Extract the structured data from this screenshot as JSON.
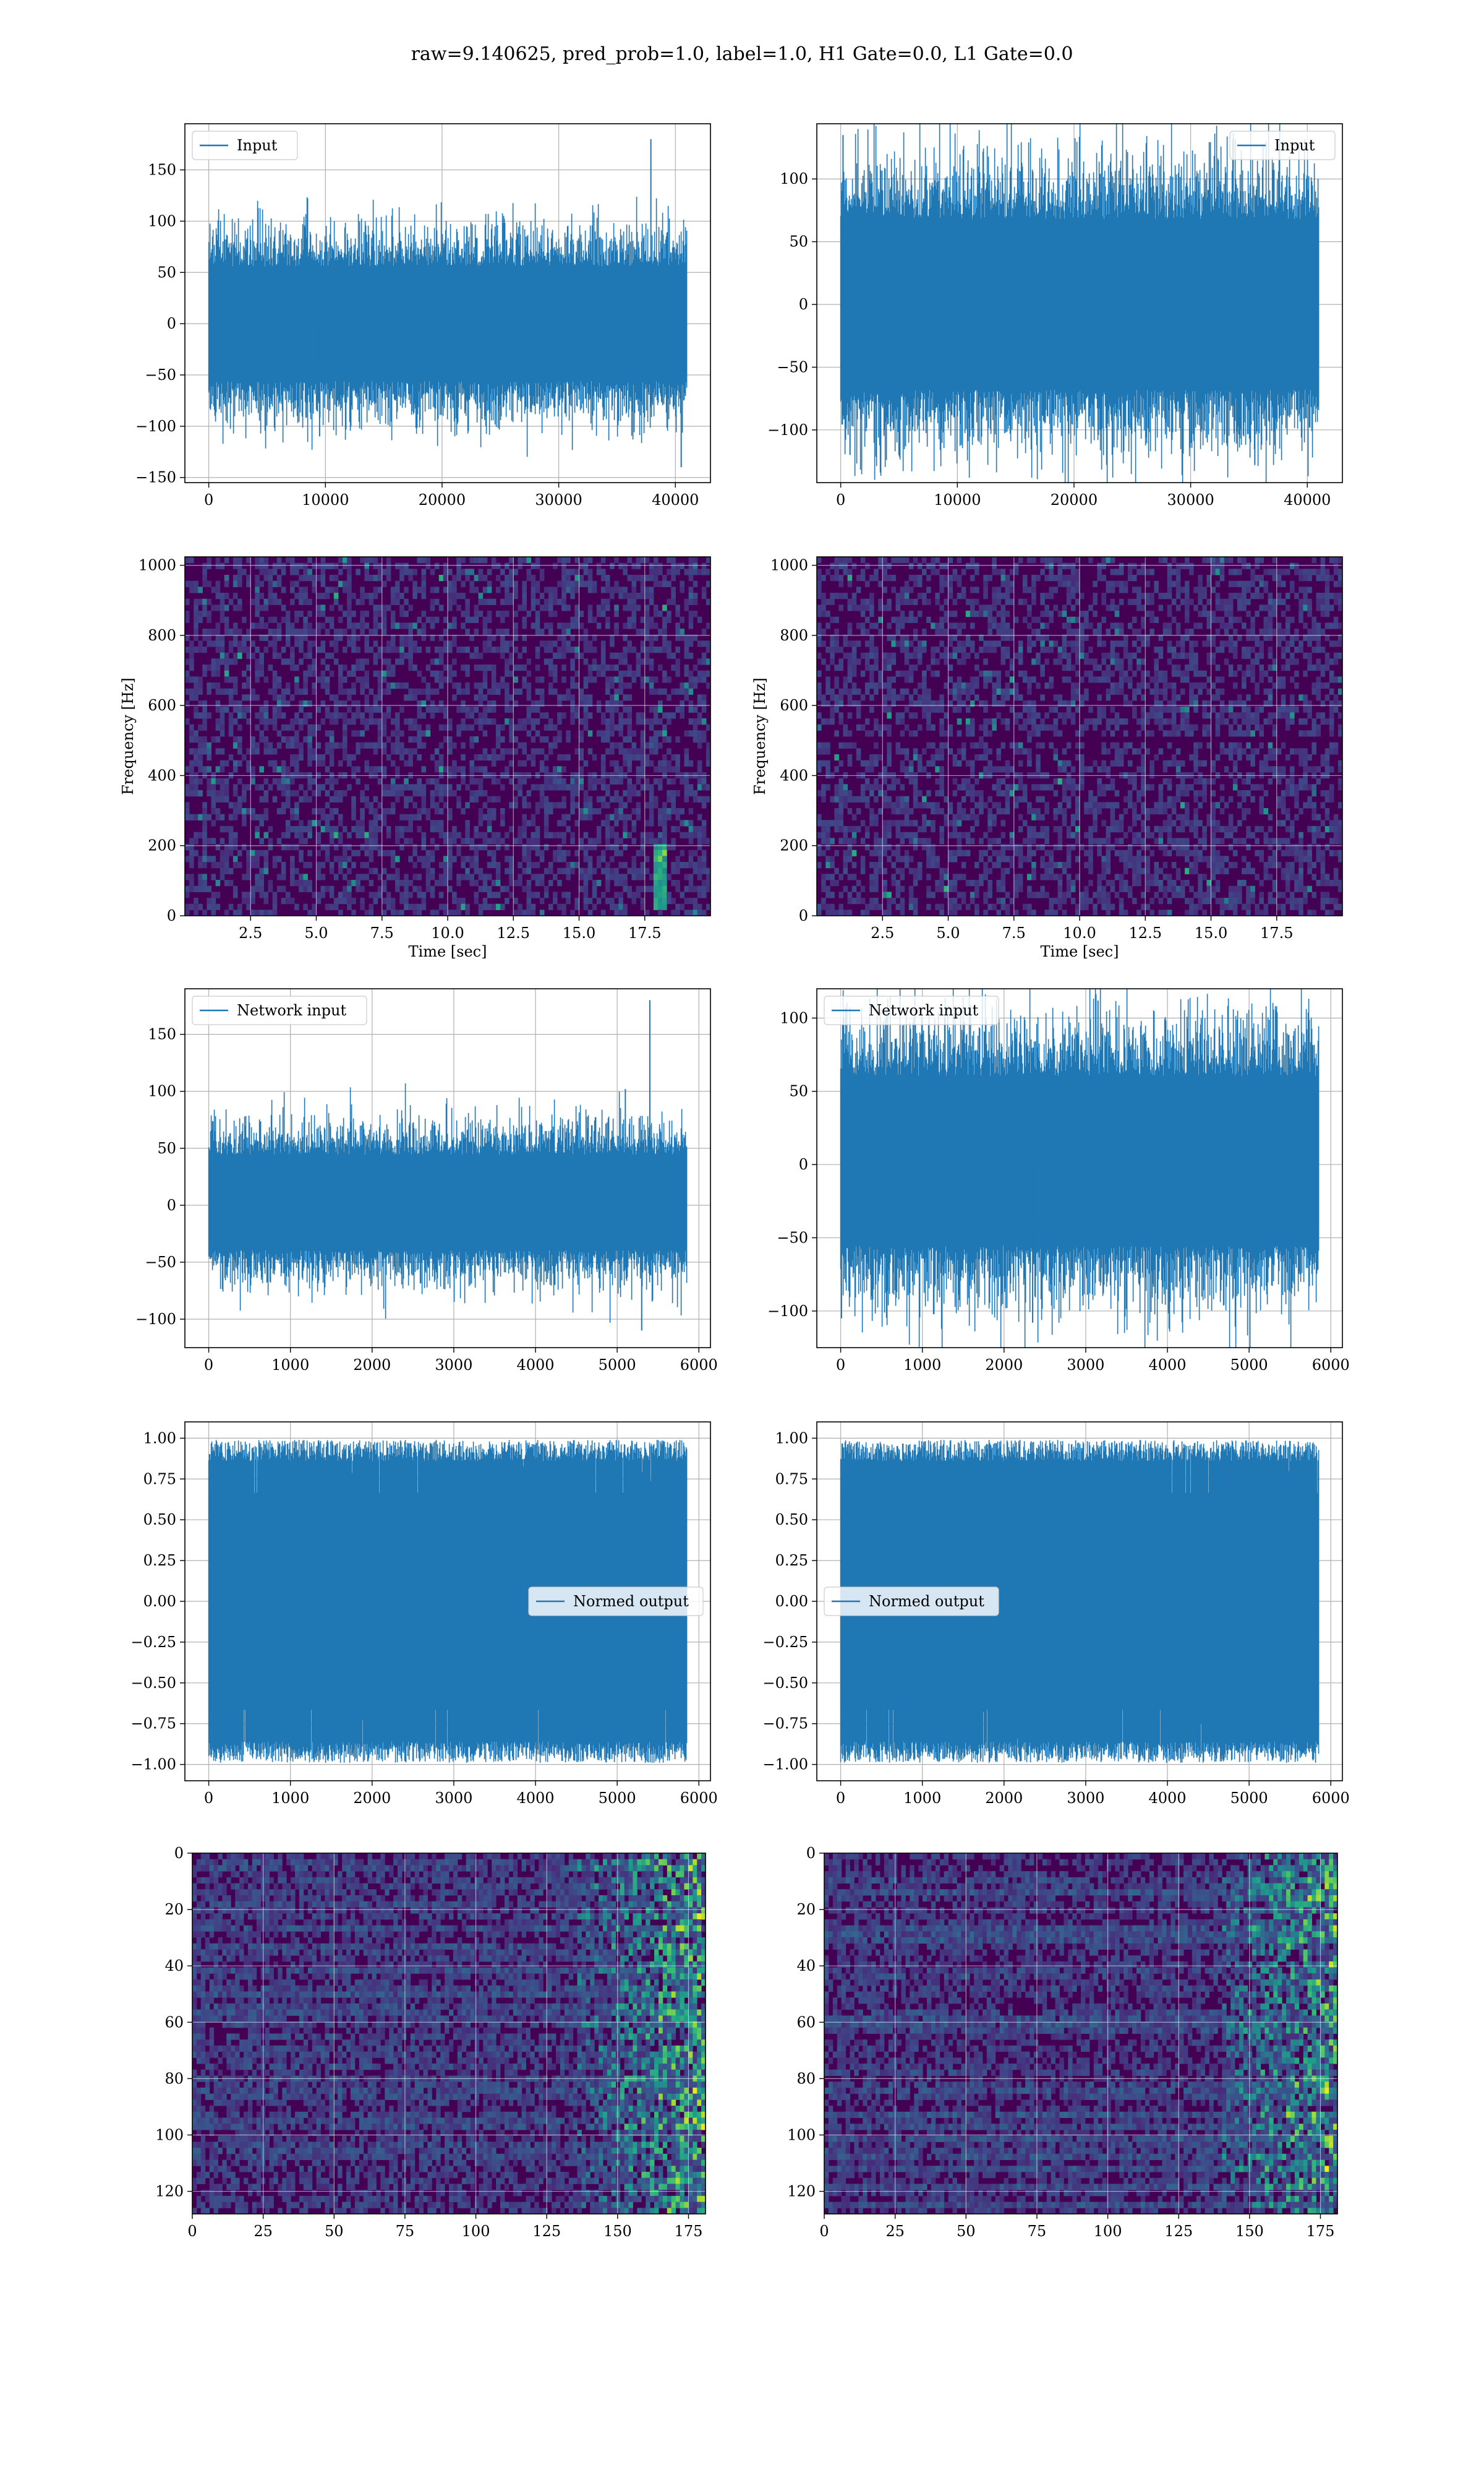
{
  "figure": {
    "suptitle": "raw=9.140625, pred_prob=1.0, label=1.0, H1 Gate=0.0, L1 Gate=0.0"
  },
  "colors": {
    "line": "#1f77b4",
    "grid": "#b0b0b0",
    "viridis_low": "#440154",
    "viridis_mid": "#21918c",
    "viridis_high": "#fde725"
  },
  "chart_data": [
    {
      "id": "row1-left",
      "type": "line",
      "legend": "Input",
      "legend_loc": "upper left",
      "x_range": [
        0,
        40960
      ],
      "n_points": 40960,
      "envelope_typical": [
        -70,
        70
      ],
      "xlim": [
        -2048,
        43008
      ],
      "ylim": [
        -155,
        195
      ],
      "xticks": [
        0,
        10000,
        20000,
        30000,
        40000
      ],
      "xtick_labels": [
        "0",
        "10000",
        "20000",
        "30000",
        "40000"
      ],
      "yticks": [
        -150,
        -100,
        -50,
        0,
        50,
        100,
        150
      ],
      "ytick_labels": [
        "−150",
        "−100",
        "−50",
        "0",
        "50",
        "100",
        "150"
      ],
      "spikes": [
        {
          "x": 37900,
          "y": 180
        },
        {
          "x": 40500,
          "y": -140
        },
        {
          "x": 9500,
          "y": -110
        }
      ],
      "xlabel": "",
      "ylabel": "",
      "grid": true
    },
    {
      "id": "row1-right",
      "type": "line",
      "legend": "Input",
      "legend_loc": "upper right",
      "x_range": [
        0,
        40960
      ],
      "n_points": 40960,
      "envelope_typical": [
        -85,
        85
      ],
      "xlim": [
        -2048,
        43008
      ],
      "ylim": [
        -142,
        144
      ],
      "xticks": [
        0,
        10000,
        20000,
        30000,
        40000
      ],
      "xtick_labels": [
        "0",
        "10000",
        "20000",
        "30000",
        "40000"
      ],
      "yticks": [
        -100,
        -50,
        0,
        50,
        100
      ],
      "ytick_labels": [
        "−100",
        "−50",
        "0",
        "50",
        "100"
      ],
      "spikes": [
        {
          "x": 200,
          "y": 135
        },
        {
          "x": 800,
          "y": -120
        },
        {
          "x": 35500,
          "y": -128
        }
      ],
      "xlabel": "",
      "ylabel": "",
      "grid": true
    },
    {
      "id": "row2-left",
      "type": "heatmap",
      "colormap": "viridis",
      "xlim": [
        0,
        20
      ],
      "ylim": [
        0,
        1024
      ],
      "xticks": [
        2.5,
        5.0,
        7.5,
        10.0,
        12.5,
        15.0,
        17.5
      ],
      "xtick_labels": [
        "2.5",
        "5.0",
        "7.5",
        "10.0",
        "12.5",
        "15.0",
        "17.5"
      ],
      "yticks": [
        0,
        200,
        400,
        600,
        800,
        1000
      ],
      "ytick_labels": [
        "0",
        "200",
        "400",
        "600",
        "800",
        "1000"
      ],
      "xlabel": "Time [sec]",
      "ylabel": "Frequency [Hz]",
      "features": [
        {
          "t": 18.1,
          "f_from": 20,
          "f_to": 200
        }
      ],
      "grid": true
    },
    {
      "id": "row2-right",
      "type": "heatmap",
      "colormap": "viridis",
      "xlim": [
        0,
        20
      ],
      "ylim": [
        0,
        1024
      ],
      "xticks": [
        2.5,
        5.0,
        7.5,
        10.0,
        12.5,
        15.0,
        17.5
      ],
      "xtick_labels": [
        "2.5",
        "5.0",
        "7.5",
        "10.0",
        "12.5",
        "15.0",
        "17.5"
      ],
      "yticks": [
        0,
        200,
        400,
        600,
        800,
        1000
      ],
      "ytick_labels": [
        "0",
        "200",
        "400",
        "600",
        "800",
        "1000"
      ],
      "xlabel": "Time [sec]",
      "ylabel": "Frequency [Hz]",
      "dark_bands_hz": [
        490,
        510
      ],
      "grid": true
    },
    {
      "id": "row3-left",
      "type": "line",
      "legend": "Network input",
      "legend_loc": "upper left",
      "x_range": [
        0,
        5850
      ],
      "n_points": 5850,
      "envelope_typical": [
        -50,
        55
      ],
      "xlim": [
        -292,
        6142
      ],
      "ylim": [
        -125,
        190
      ],
      "xticks": [
        0,
        1000,
        2000,
        3000,
        4000,
        5000,
        6000
      ],
      "xtick_labels": [
        "0",
        "1000",
        "2000",
        "3000",
        "4000",
        "5000",
        "6000"
      ],
      "yticks": [
        -100,
        -50,
        0,
        50,
        100,
        150
      ],
      "ytick_labels": [
        "−100",
        "−50",
        "0",
        "50",
        "100",
        "150"
      ],
      "spikes": [
        {
          "x": 5400,
          "y": 180
        },
        {
          "x": 5300,
          "y": -110
        },
        {
          "x": 5100,
          "y": 102
        }
      ],
      "xlabel": "",
      "ylabel": "",
      "grid": true
    },
    {
      "id": "row3-right",
      "type": "line",
      "legend": "Network input",
      "legend_loc": "upper left",
      "x_range": [
        0,
        5850
      ],
      "n_points": 5850,
      "envelope_typical": [
        -70,
        75
      ],
      "xlim": [
        -292,
        6142
      ],
      "ylim": [
        -125,
        120
      ],
      "xticks": [
        0,
        1000,
        2000,
        3000,
        4000,
        5000,
        6000
      ],
      "xtick_labels": [
        "0",
        "1000",
        "2000",
        "3000",
        "4000",
        "5000",
        "6000"
      ],
      "yticks": [
        -100,
        -50,
        0,
        50,
        100
      ],
      "ytick_labels": [
        "−100",
        "−50",
        "0",
        "50",
        "100"
      ],
      "spikes": [
        {
          "x": 2350,
          "y": -108
        },
        {
          "x": 3150,
          "y": 112
        },
        {
          "x": 10,
          "y": -105
        }
      ],
      "xlabel": "",
      "ylabel": "",
      "grid": true
    },
    {
      "id": "row4-left",
      "type": "line",
      "legend": "Normed output",
      "legend_loc": "center right",
      "x_range": [
        0,
        5850
      ],
      "n_points": 5850,
      "envelope_typical": [
        -0.95,
        0.95
      ],
      "xlim": [
        -292,
        6142
      ],
      "ylim": [
        -1.1,
        1.1
      ],
      "xticks": [
        0,
        1000,
        2000,
        3000,
        4000,
        5000,
        6000
      ],
      "xtick_labels": [
        "0",
        "1000",
        "2000",
        "3000",
        "4000",
        "5000",
        "6000"
      ],
      "yticks": [
        -1.0,
        -0.75,
        -0.5,
        -0.25,
        0.0,
        0.25,
        0.5,
        0.75,
        1.0
      ],
      "ytick_labels": [
        "−1.00",
        "−0.75",
        "−0.50",
        "−0.25",
        "0.00",
        "0.25",
        "0.50",
        "0.75",
        "1.00"
      ],
      "xlabel": "",
      "ylabel": "",
      "grid": true
    },
    {
      "id": "row4-right",
      "type": "line",
      "legend": "Normed output",
      "legend_loc": "center left",
      "x_range": [
        0,
        5850
      ],
      "n_points": 5850,
      "envelope_typical": [
        -0.95,
        0.95
      ],
      "xlim": [
        -292,
        6142
      ],
      "ylim": [
        -1.1,
        1.1
      ],
      "xticks": [
        0,
        1000,
        2000,
        3000,
        4000,
        5000,
        6000
      ],
      "xtick_labels": [
        "0",
        "1000",
        "2000",
        "3000",
        "4000",
        "5000",
        "6000"
      ],
      "yticks": [
        -1.0,
        -0.75,
        -0.5,
        -0.25,
        0.0,
        0.25,
        0.5,
        0.75,
        1.0
      ],
      "ytick_labels": [
        "−1.00",
        "−0.75",
        "−0.50",
        "−0.25",
        "0.00",
        "0.25",
        "0.50",
        "0.75",
        "1.00"
      ],
      "xlabel": "",
      "ylabel": "",
      "grid": true
    },
    {
      "id": "row5-left",
      "type": "heatmap",
      "colormap": "viridis",
      "xlim": [
        0,
        181
      ],
      "ylim": [
        128,
        0
      ],
      "xticks": [
        0,
        25,
        50,
        75,
        100,
        125,
        150,
        175
      ],
      "xtick_labels": [
        "0",
        "25",
        "50",
        "75",
        "100",
        "125",
        "150",
        "175"
      ],
      "yticks": [
        0,
        20,
        40,
        60,
        80,
        100,
        120
      ],
      "ytick_labels": [
        "0",
        "20",
        "40",
        "60",
        "80",
        "100",
        "120"
      ],
      "xlabel": "",
      "ylabel": "",
      "bright_region_x": [
        135,
        181
      ],
      "grid": true
    },
    {
      "id": "row5-right",
      "type": "heatmap",
      "colormap": "viridis",
      "xlim": [
        0,
        181
      ],
      "ylim": [
        128,
        0
      ],
      "xticks": [
        0,
        25,
        50,
        75,
        100,
        125,
        150,
        175
      ],
      "xtick_labels": [
        "0",
        "25",
        "50",
        "75",
        "100",
        "125",
        "150",
        "175"
      ],
      "yticks": [
        0,
        20,
        40,
        60,
        80,
        100,
        120
      ],
      "ytick_labels": [
        "0",
        "20",
        "40",
        "60",
        "80",
        "100",
        "120"
      ],
      "xlabel": "",
      "ylabel": "",
      "bright_region_x": [
        140,
        181
      ],
      "grid": true
    }
  ]
}
